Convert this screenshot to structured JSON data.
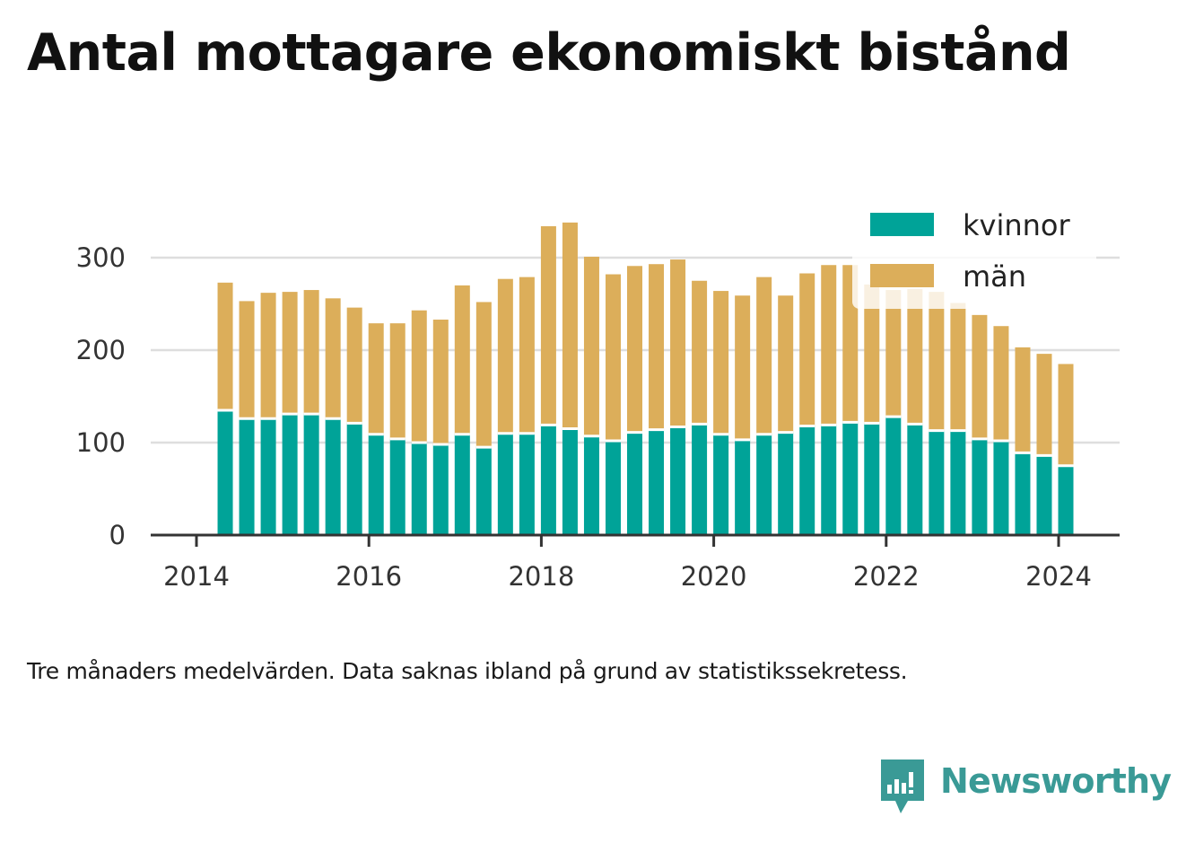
{
  "chart_data": {
    "type": "bar",
    "stacked": true,
    "title": "Antal mottagare ekonomiskt bistånd",
    "note": "Tre månaders medelvärden. Data saknas ibland på grund av statistikssekretess.",
    "xlabel": "",
    "ylabel": "",
    "x_ticks": [
      "2014",
      "2016",
      "2018",
      "2020",
      "2022",
      "2024"
    ],
    "y_ticks": [
      0,
      100,
      200,
      300
    ],
    "ylim": [
      0,
      345
    ],
    "grid": true,
    "legend_position": "top-right",
    "categories": [
      "2014-05",
      "2014-08",
      "2014-11",
      "2015-02",
      "2015-05",
      "2015-08",
      "2015-11",
      "2016-02",
      "2016-05",
      "2016-08",
      "2016-11",
      "2017-02",
      "2017-05",
      "2017-08",
      "2017-11",
      "2018-02",
      "2018-05",
      "2018-08",
      "2018-11",
      "2019-02",
      "2019-05",
      "2019-08",
      "2019-11",
      "2020-02",
      "2020-05",
      "2020-08",
      "2020-11",
      "2021-02",
      "2021-05",
      "2021-08",
      "2021-11",
      "2022-02",
      "2022-05",
      "2022-08",
      "2022-11",
      "2023-02",
      "2023-05",
      "2023-08",
      "2023-11",
      "2024-02"
    ],
    "series": [
      {
        "name": "kvinnor",
        "color": "#00a398",
        "values": [
          135,
          126,
          126,
          131,
          131,
          126,
          121,
          109,
          104,
          100,
          98,
          109,
          95,
          110,
          110,
          119,
          115,
          107,
          102,
          111,
          114,
          117,
          120,
          109,
          103,
          109,
          111,
          118,
          119,
          122,
          121,
          128,
          120,
          113,
          113,
          104,
          102,
          89,
          86,
          75
        ]
      },
      {
        "name": "män",
        "color": "#dcae5a",
        "values": [
          138,
          127,
          136,
          132,
          134,
          130,
          125,
          120,
          125,
          143,
          135,
          161,
          157,
          167,
          169,
          215,
          223,
          194,
          180,
          180,
          179,
          181,
          155,
          155,
          156,
          170,
          148,
          165,
          173,
          170,
          150,
          137,
          146,
          150,
          138,
          134,
          124,
          114,
          110,
          110
        ]
      }
    ]
  },
  "brand": {
    "name": "Newsworthy"
  }
}
